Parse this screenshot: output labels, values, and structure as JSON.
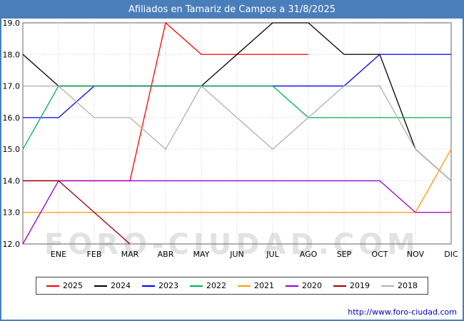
{
  "title": "Afiliados en Tamariz de Campos a 31/8/2025",
  "watermark": "FORO-CIUDAD.COM",
  "footer": {
    "url": "http://www.foro-ciudad.com"
  },
  "colors": {
    "header_bg": "#4a7ebb",
    "border": "#4a7ebb",
    "grid": "#cccccc",
    "plot_frame": "#666666",
    "axis_text": "#000000",
    "watermark_gray": "#d9d9d9",
    "url_blue": "#0000cc"
  },
  "chart_data": {
    "type": "line",
    "title": "Afiliados en Tamariz de Campos a 31/8/2025",
    "categories": [
      "ENE",
      "FEB",
      "MAR",
      "ABR",
      "MAY",
      "JUN",
      "JUL",
      "AGO",
      "SEP",
      "OCT",
      "NOV",
      "DIC"
    ],
    "xlabel": "",
    "ylabel": "",
    "ylim": [
      12,
      19
    ],
    "ytick_step": 1,
    "ytick_labels": [
      "12.0",
      "13.0",
      "14.0",
      "15.0",
      "16.0",
      "17.0",
      "18.0",
      "19.0"
    ],
    "grid": true,
    "legend_position": "bottom",
    "note": "Each line starts at the y-axis with the previous December value (prev). 2025 runs Jan-Aug; 2019 drops out of range after March.",
    "series": [
      {
        "name": "2025",
        "color": "#ff0000",
        "prev": 14,
        "values": [
          14,
          14,
          14,
          19,
          18,
          18,
          18,
          18,
          null,
          null,
          null,
          null
        ]
      },
      {
        "name": "2024",
        "color": "#000000",
        "prev": 18,
        "values": [
          17,
          17,
          17,
          17,
          17,
          18,
          19,
          19,
          18,
          18,
          15,
          14
        ]
      },
      {
        "name": "2023",
        "color": "#0000ff",
        "prev": 16,
        "values": [
          16,
          17,
          17,
          17,
          17,
          17,
          17,
          17,
          17,
          18,
          18,
          18
        ]
      },
      {
        "name": "2022",
        "color": "#00b050",
        "prev": 15,
        "values": [
          17,
          17,
          17,
          17,
          17,
          17,
          17,
          16,
          16,
          16,
          16,
          16
        ]
      },
      {
        "name": "2021",
        "color": "#ff9900",
        "prev": 13,
        "values": [
          13,
          13,
          13,
          13,
          13,
          13,
          13,
          13,
          13,
          13,
          13,
          15
        ]
      },
      {
        "name": "2020",
        "color": "#9900cc",
        "prev": 12,
        "values": [
          14,
          14,
          14,
          14,
          14,
          14,
          14,
          14,
          14,
          14,
          13,
          13
        ]
      },
      {
        "name": "2019",
        "color": "#990000",
        "prev": 14,
        "values": [
          14,
          13,
          12,
          null,
          null,
          null,
          null,
          null,
          null,
          null,
          null,
          null
        ]
      },
      {
        "name": "2018",
        "color": "#b0b0b0",
        "prev": 17,
        "values": [
          17,
          16,
          16,
          15,
          17,
          16,
          15,
          16,
          17,
          17,
          15,
          14
        ]
      }
    ]
  }
}
